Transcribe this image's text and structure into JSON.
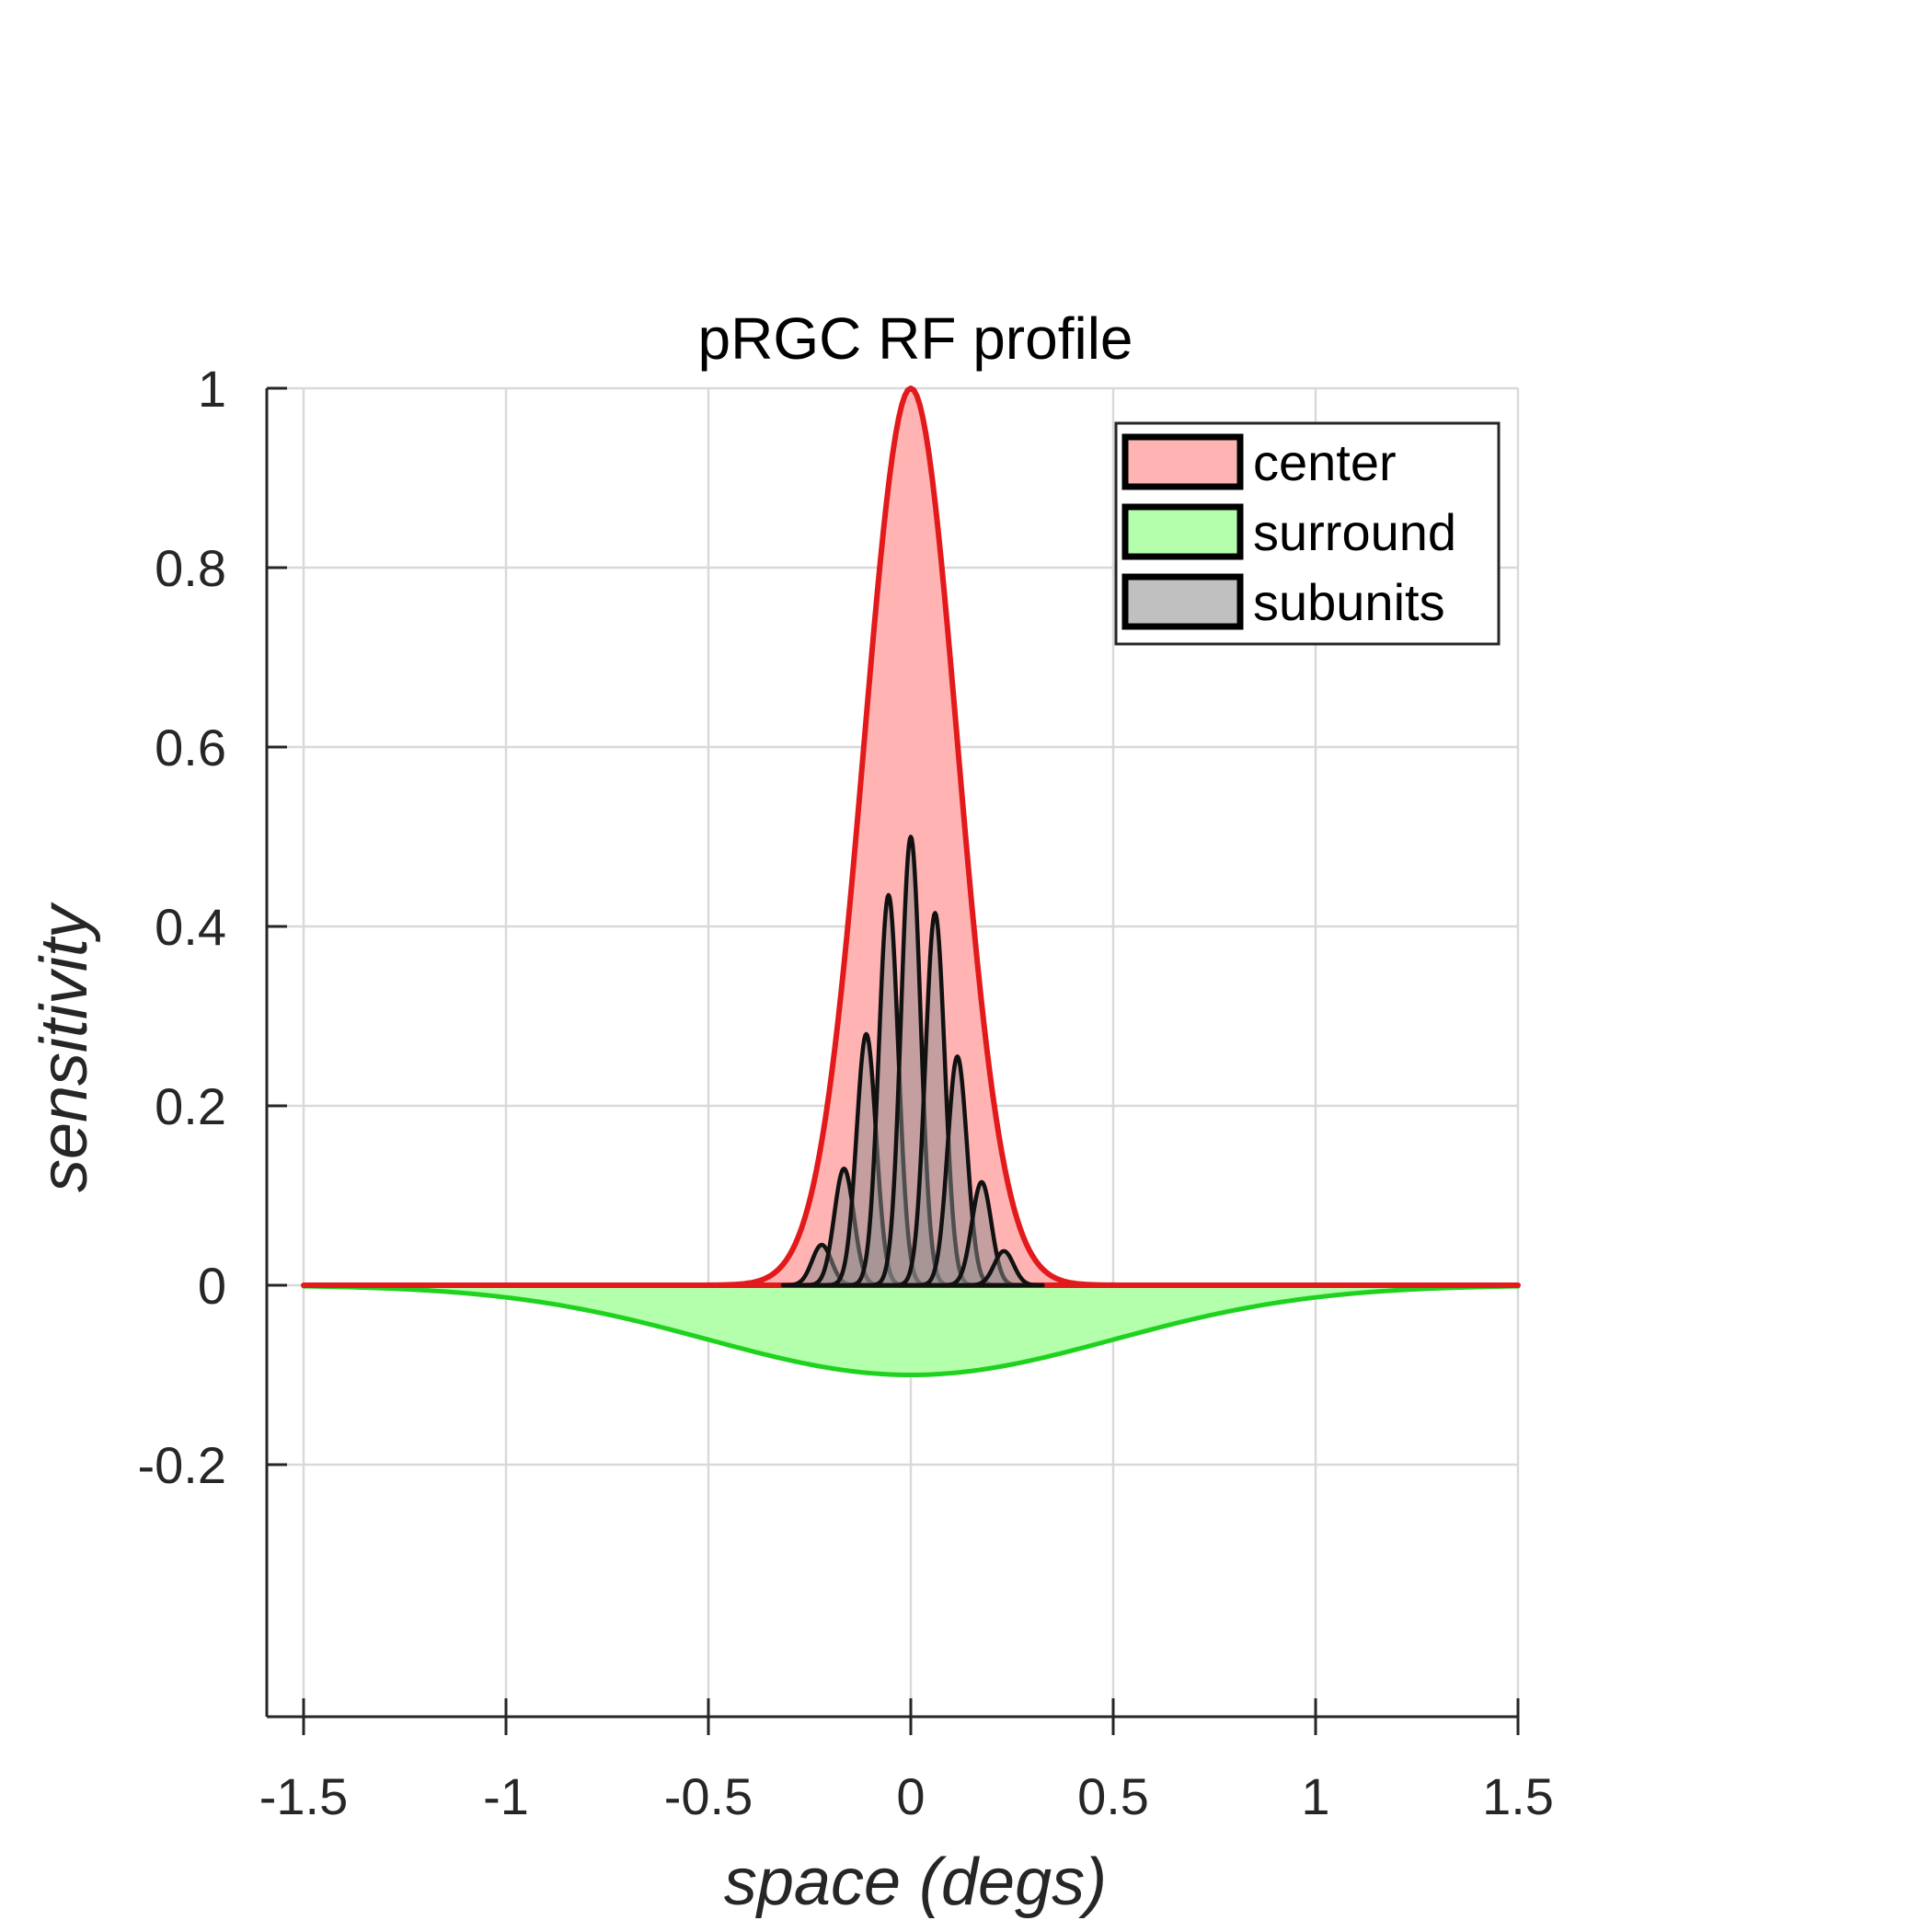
{
  "chart_data": {
    "type": "area",
    "title": "pRGC RF profile",
    "xlabel": "space (degs)",
    "ylabel": "sensitivity",
    "xlim": [
      -1.5,
      1.5
    ],
    "ylim": [
      -0.2,
      1
    ],
    "xticks": [
      -1.5,
      -1,
      -0.5,
      0,
      0.5,
      1,
      1.5
    ],
    "xtick_labels": [
      "-1.5",
      "-1",
      "-0.5",
      "0",
      "0.5",
      "1",
      "1.5"
    ],
    "yticks": [
      -0.2,
      0,
      0.2,
      0.4,
      0.6,
      0.8,
      1
    ],
    "ytick_labels": [
      "-0.2",
      "0",
      "0.2",
      "0.4",
      "0.6",
      "0.8",
      "1"
    ],
    "grid": true,
    "legend_position": "top-right",
    "series": [
      {
        "name": "center",
        "shape": "gaussian",
        "peak": 1.0,
        "center_x": 0,
        "sigma": 0.115,
        "fill": "#ffb3b3",
        "stroke": "#e31a1c"
      },
      {
        "name": "surround",
        "shape": "gaussian",
        "peak": -0.1,
        "center_x": 0,
        "sigma": 0.5,
        "fill": "#b3ffab",
        "stroke": "#1fd21f"
      },
      {
        "name": "subunits",
        "shape": "gaussian-set",
        "sigma": 0.024,
        "fill": "#8c8c8c",
        "stroke": "#111111",
        "peaks": [
          {
            "x": -0.22,
            "y": 0.045
          },
          {
            "x": -0.165,
            "y": 0.13
          },
          {
            "x": -0.11,
            "y": 0.28
          },
          {
            "x": -0.055,
            "y": 0.435
          },
          {
            "x": 0.0,
            "y": 0.5
          },
          {
            "x": 0.06,
            "y": 0.415
          },
          {
            "x": 0.115,
            "y": 0.255
          },
          {
            "x": 0.175,
            "y": 0.115
          },
          {
            "x": 0.23,
            "y": 0.038
          }
        ]
      }
    ]
  }
}
